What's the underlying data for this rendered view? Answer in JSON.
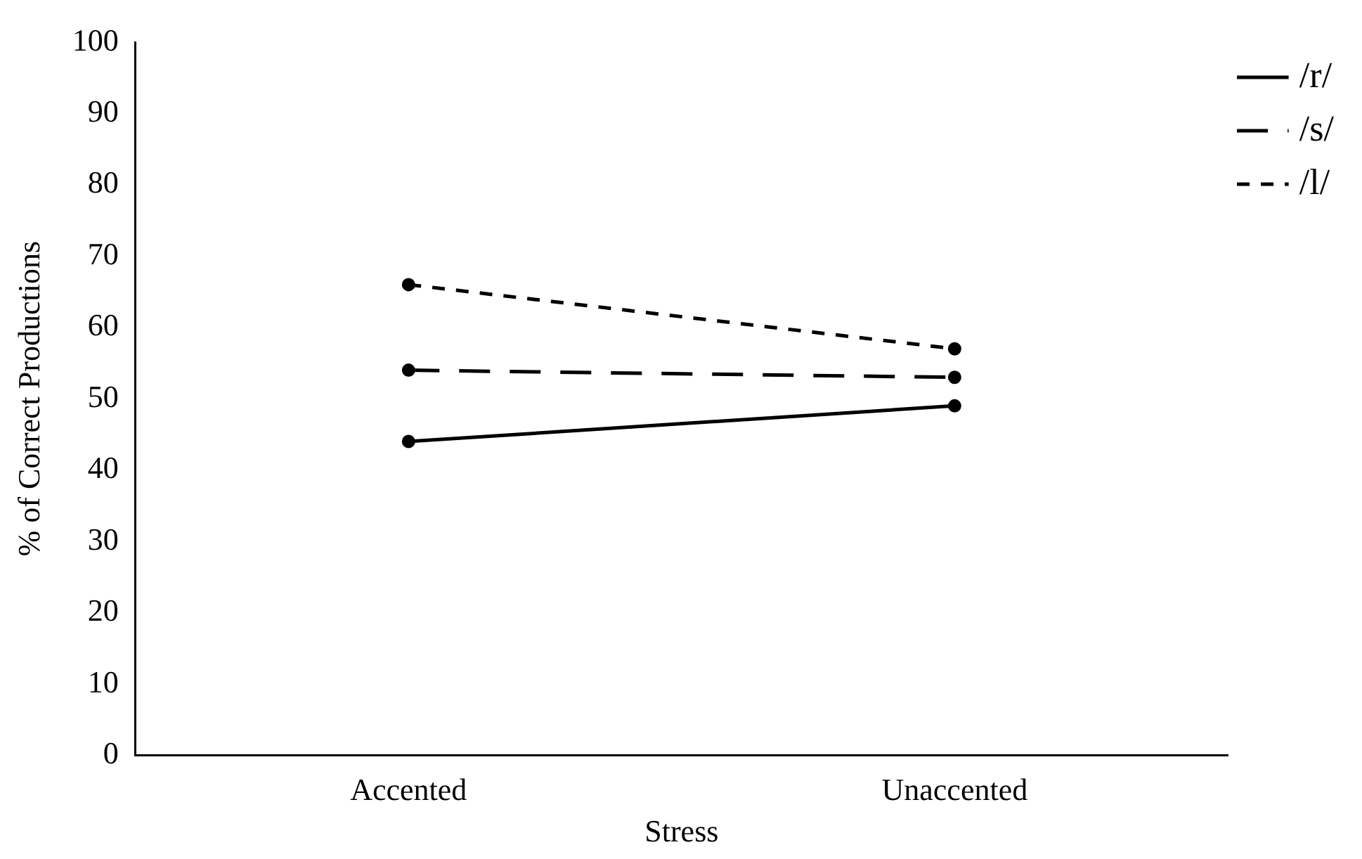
{
  "chart_data": {
    "type": "line",
    "xlabel": "Stress",
    "ylabel": "% of Correct Productions",
    "categories": [
      "Accented",
      "Unaccented"
    ],
    "series": [
      {
        "name": "/r/",
        "color": "#000000",
        "values": [
          44,
          49
        ],
        "line_style": "solid"
      },
      {
        "name": "/s/",
        "color": "#000000",
        "values": [
          54,
          53
        ],
        "line_style": "dashed"
      },
      {
        "name": "/l/",
        "color": "#000000",
        "values": [
          66,
          57
        ],
        "line_style": "dotted"
      }
    ],
    "ylim": [
      0,
      100
    ],
    "yticks": [
      0,
      10,
      20,
      30,
      40,
      50,
      60,
      70,
      80,
      90,
      100
    ],
    "grid": false,
    "legend": "top right",
    "marker": "circle"
  }
}
